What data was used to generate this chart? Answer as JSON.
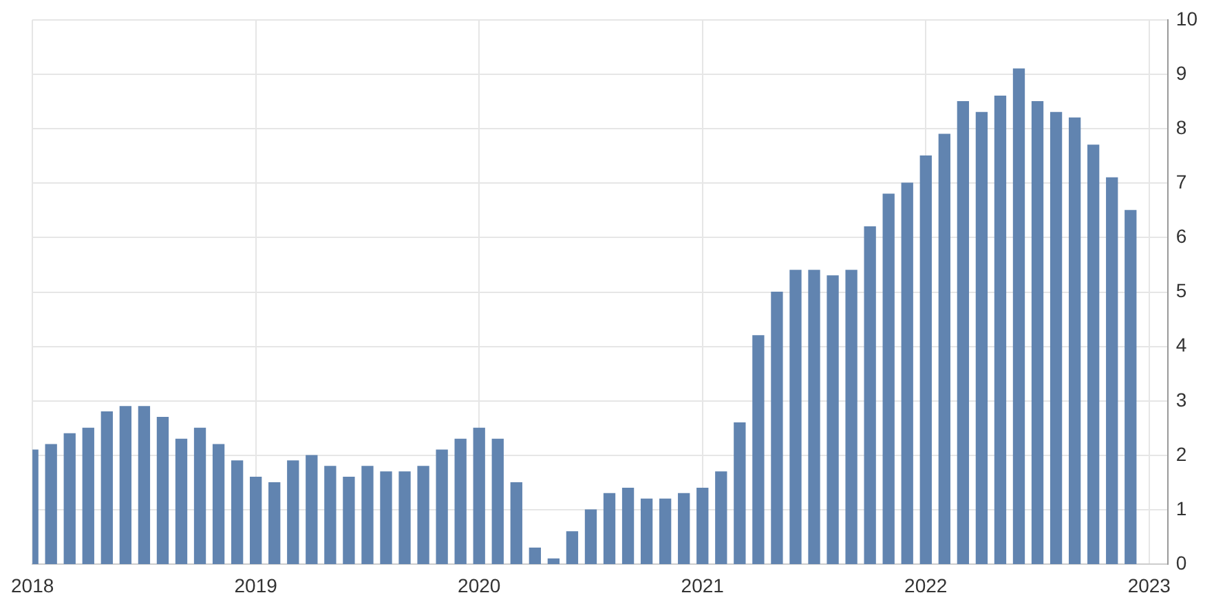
{
  "chart_data": {
    "type": "bar",
    "x": [
      "2018-01",
      "2018-02",
      "2018-03",
      "2018-04",
      "2018-05",
      "2018-06",
      "2018-07",
      "2018-08",
      "2018-09",
      "2018-10",
      "2018-11",
      "2018-12",
      "2019-01",
      "2019-02",
      "2019-03",
      "2019-04",
      "2019-05",
      "2019-06",
      "2019-07",
      "2019-08",
      "2019-09",
      "2019-10",
      "2019-11",
      "2019-12",
      "2020-01",
      "2020-02",
      "2020-03",
      "2020-04",
      "2020-05",
      "2020-06",
      "2020-07",
      "2020-08",
      "2020-09",
      "2020-10",
      "2020-11",
      "2020-12",
      "2021-01",
      "2021-02",
      "2021-03",
      "2021-04",
      "2021-05",
      "2021-06",
      "2021-07",
      "2021-08",
      "2021-09",
      "2021-10",
      "2021-11",
      "2021-12",
      "2022-01",
      "2022-02",
      "2022-03",
      "2022-04",
      "2022-05",
      "2022-06",
      "2022-07",
      "2022-08",
      "2022-09",
      "2022-10",
      "2022-11",
      "2022-12"
    ],
    "values": [
      2.1,
      2.2,
      2.4,
      2.5,
      2.8,
      2.9,
      2.9,
      2.7,
      2.3,
      2.5,
      2.2,
      1.9,
      1.6,
      1.5,
      1.9,
      2.0,
      1.8,
      1.6,
      1.8,
      1.7,
      1.7,
      1.8,
      2.1,
      2.3,
      2.5,
      2.3,
      1.5,
      0.3,
      0.1,
      0.6,
      1.0,
      1.3,
      1.4,
      1.2,
      1.2,
      1.3,
      1.4,
      1.7,
      2.6,
      4.2,
      5.0,
      5.4,
      5.4,
      5.3,
      5.4,
      6.2,
      6.8,
      7.0,
      7.5,
      7.9,
      8.5,
      8.3,
      8.6,
      9.1,
      8.5,
      8.3,
      8.2,
      7.7,
      7.1,
      6.5
    ],
    "color": "#6184b0",
    "xlim": [
      "2018",
      "2023-02"
    ],
    "xticks": [
      "2018",
      "2019",
      "2020",
      "2021",
      "2022",
      "2023"
    ],
    "ylim": [
      0,
      10
    ],
    "yticks": [
      0,
      1,
      2,
      3,
      4,
      5,
      6,
      7,
      8,
      9,
      10
    ],
    "grid": true,
    "legend": false
  }
}
